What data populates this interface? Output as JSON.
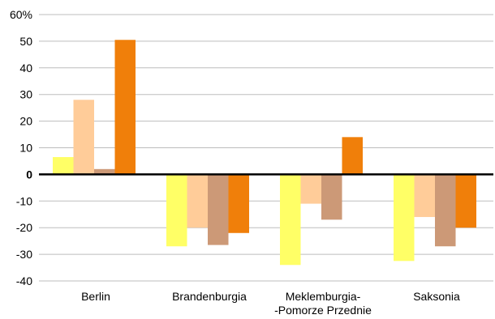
{
  "chart_data": {
    "type": "bar",
    "categories": [
      [
        "Berlin"
      ],
      [
        "Brandenburgia"
      ],
      [
        "Meklemburgia-",
        "-Pomorze Przednie"
      ],
      [
        "Saksonia"
      ]
    ],
    "series": [
      {
        "values": [
          6.5,
          -27,
          -34,
          -32.5
        ]
      },
      {
        "values": [
          28,
          -20,
          -11,
          -16
        ]
      },
      {
        "values": [
          2,
          -26.5,
          -17,
          -27
        ]
      },
      {
        "values": [
          50.5,
          -22,
          14,
          -20
        ]
      }
    ],
    "ylim": [
      -40,
      60
    ],
    "yticks": [
      -40,
      -30,
      -20,
      -10,
      0,
      10,
      20,
      30,
      40,
      50,
      60
    ],
    "ytick_labels": [
      "-40",
      "-30",
      "-20",
      "-10",
      "0",
      "10",
      "20",
      "30",
      "40",
      "50",
      "60%"
    ],
    "colors": [
      "#ffff66",
      "#ffcc99",
      "#cc9977",
      "#f07f0a"
    ],
    "gridlines": true,
    "legend": "none"
  }
}
